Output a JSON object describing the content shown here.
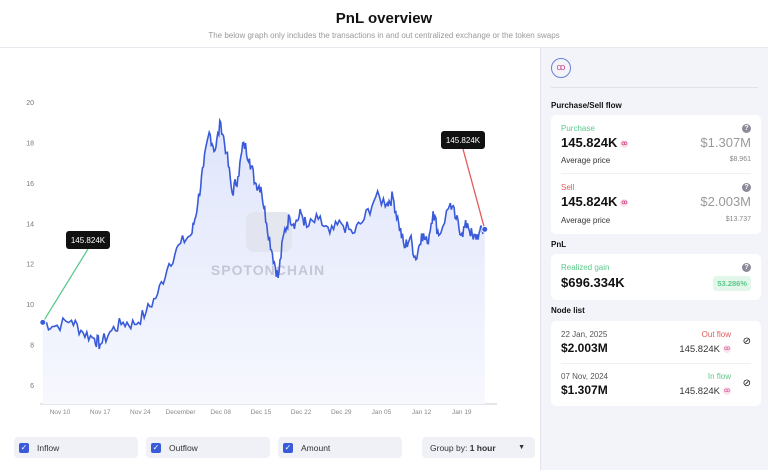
{
  "header": {
    "title": "PnL overview",
    "subtitle": "The below graph only includes the transactions in and out centralized exchange or the token swaps"
  },
  "watermark": "SPOTONCHAIN",
  "chart_data": {
    "type": "line",
    "title": "",
    "xlabel": "",
    "ylabel": "",
    "x_tick_labels": [
      "Nov 10",
      "Nov 17",
      "Nov 24",
      "December",
      "Dec 08",
      "Dec 15",
      "Dec 22",
      "Dec 29",
      "Jan 05",
      "Jan 12",
      "Jan 19"
    ],
    "x_tick_days": [
      0,
      7,
      14,
      21,
      28,
      35,
      42,
      49,
      56,
      63,
      70
    ],
    "y_tick_labels": [
      "6",
      "8",
      "10",
      "12",
      "14",
      "16",
      "18",
      "20"
    ],
    "ylim": [
      6,
      20
    ],
    "xlim_days": [
      -3,
      75
    ],
    "x_unit": "days since Nov 10",
    "series": [
      {
        "name": "Amount",
        "color": "#3a5bd9",
        "x": [
          -3,
          -1,
          2,
          4,
          6,
          7,
          9,
          11,
          13,
          15,
          17,
          19,
          21,
          23,
          24,
          25,
          26,
          27,
          28,
          29,
          30,
          31,
          32,
          33,
          34,
          35,
          36,
          37,
          38,
          39,
          40,
          41,
          42,
          43,
          45,
          47,
          49,
          51,
          53,
          55,
          57,
          58,
          59,
          60,
          61,
          62,
          63,
          64,
          65,
          66,
          68,
          69,
          70,
          71,
          72,
          73,
          74
        ],
        "y": [
          9.1,
          8.9,
          9.2,
          8.6,
          8.3,
          8.0,
          8.7,
          9.1,
          9.0,
          9.6,
          10.5,
          12.0,
          13.0,
          13.5,
          15.0,
          16.8,
          18.5,
          17.6,
          19.0,
          17.5,
          15.5,
          16.3,
          18.0,
          17.2,
          16.0,
          15.8,
          14.0,
          12.5,
          11.3,
          13.5,
          14.3,
          14.0,
          14.5,
          13.8,
          14.2,
          13.5,
          14.0,
          13.5,
          14.2,
          15.3,
          15.0,
          15.3,
          14.0,
          12.8,
          13.3,
          12.2,
          13.5,
          13.0,
          14.6,
          13.4,
          15.0,
          14.2,
          13.5,
          14.0,
          13.2,
          13.5,
          13.7
        ]
      }
    ],
    "annotations": [
      {
        "label": "145.824K",
        "type": "inflow",
        "day": -3,
        "value": 9.1,
        "color": "#5cc98a"
      },
      {
        "label": "145.824K",
        "type": "outflow",
        "day": 74,
        "value": 13.7,
        "color": "#e45a5a"
      }
    ]
  },
  "controls": {
    "inflow": "Inflow",
    "outflow": "Outflow",
    "amount": "Amount",
    "group_prefix": "Group by:",
    "group_value": "1 hour"
  },
  "side": {
    "flow_title": "Purchase/Sell flow",
    "purchase": {
      "label": "Purchase",
      "amount": "145.824K",
      "usd": "$1.307M",
      "avg_label": "Average price",
      "avg": "$8.961"
    },
    "sell": {
      "label": "Sell",
      "amount": "145.824K",
      "usd": "$2.003M",
      "avg_label": "Average price",
      "avg": "$13.737"
    },
    "pnl_title": "PnL",
    "pnl": {
      "label": "Realized gain",
      "value": "$696.334K",
      "pct": "53.286%"
    },
    "node_title": "Node list",
    "nodes": [
      {
        "date": "22 Jan, 2025",
        "usd": "$2.003M",
        "type": "Out flow",
        "amount": "145.824K"
      },
      {
        "date": "07 Nov, 2024",
        "usd": "$1.307M",
        "type": "In flow",
        "amount": "145.824K"
      }
    ]
  }
}
